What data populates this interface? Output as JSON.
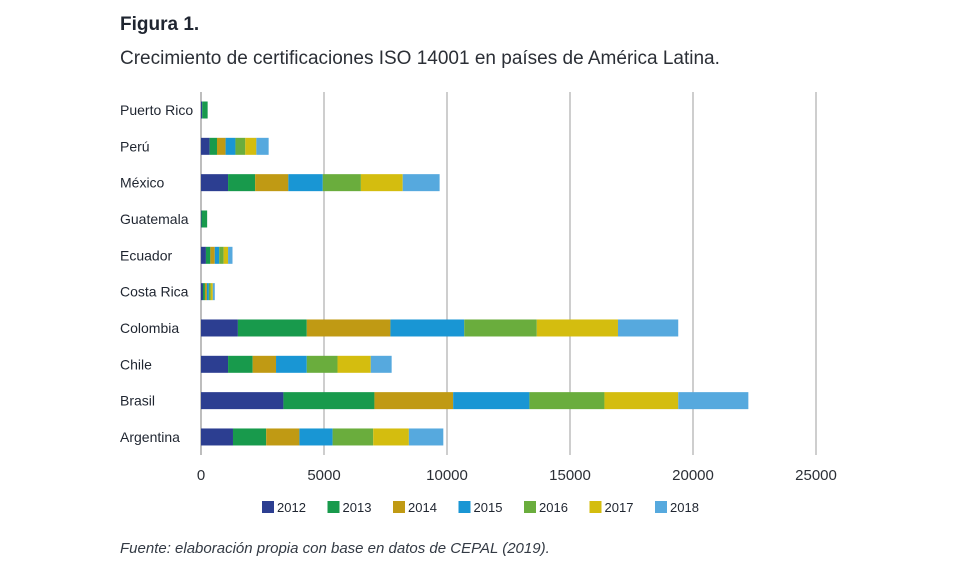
{
  "figure": {
    "label": "Figura 1.",
    "title": "Crecimiento de certificaciones ISO 14001 en países de América Latina.",
    "source": "Fuente: elaboración propia con base en datos de CEPAL (2019)."
  },
  "chart_data": {
    "type": "bar",
    "orientation": "horizontal",
    "stacked": true,
    "title": "Crecimiento de certificaciones ISO 14001 en países de América Latina.",
    "xlabel": "",
    "ylabel": "",
    "xlim": [
      0,
      25000
    ],
    "xticks": [
      0,
      5000,
      10000,
      15000,
      20000,
      25000
    ],
    "grid": true,
    "legend_position": "bottom",
    "categories": [
      "Puerto Rico",
      "Perú",
      "México",
      "Guatemala",
      "Ecuador",
      "Costa Rica",
      "Colombia",
      "Chile",
      "Brasil",
      "Argentina"
    ],
    "series": [
      {
        "name": "2012",
        "color": "#2c3e91",
        "values": [
          50,
          350,
          1100,
          20,
          200,
          80,
          1500,
          1100,
          3350,
          1300
        ]
      },
      {
        "name": "2013",
        "color": "#189a4c",
        "values": [
          220,
          300,
          1100,
          230,
          180,
          80,
          2800,
          1000,
          3700,
          1350
        ]
      },
      {
        "name": "2014",
        "color": "#c09a14",
        "values": [
          0,
          350,
          1350,
          0,
          180,
          80,
          3400,
          950,
          3200,
          1350
        ]
      },
      {
        "name": "2015",
        "color": "#1996d4",
        "values": [
          0,
          400,
          1400,
          0,
          180,
          80,
          3000,
          1250,
          3100,
          1350
        ]
      },
      {
        "name": "2016",
        "color": "#6aad3d",
        "values": [
          0,
          400,
          1550,
          0,
          180,
          80,
          2950,
          1250,
          3050,
          1650
        ]
      },
      {
        "name": "2017",
        "color": "#d4bd0f",
        "values": [
          0,
          450,
          1700,
          0,
          180,
          80,
          3300,
          1350,
          3000,
          1450
        ]
      },
      {
        "name": "2018",
        "color": "#56a9de",
        "values": [
          0,
          500,
          1500,
          0,
          180,
          80,
          2450,
          850,
          2850,
          1400
        ]
      }
    ]
  }
}
